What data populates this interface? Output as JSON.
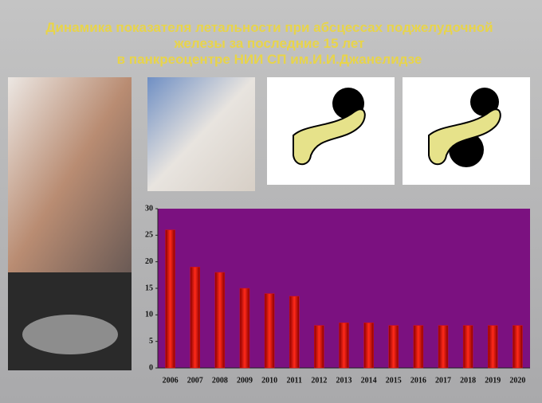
{
  "title_lines": [
    "Динамика показателя летальности при абсцессах поджелудочной",
    "железы за последние 15 лет",
    "в панкреоцентре НИИ СП им.И.И.Джанелидзе"
  ],
  "chart_data": {
    "type": "bar",
    "categories": [
      "2006",
      "2007",
      "2008",
      "2009",
      "2010",
      "2011",
      "2012",
      "2013",
      "2014",
      "2015",
      "2016",
      "2017",
      "2018",
      "2019",
      "2020"
    ],
    "values": [
      26,
      19,
      18,
      15,
      14,
      13.5,
      8,
      8.5,
      8.5,
      8,
      8,
      8,
      8,
      8,
      8
    ],
    "color": "#e01010",
    "ylim": [
      0,
      30
    ],
    "yticks": [
      0,
      5,
      10,
      15,
      20,
      25,
      30
    ],
    "grid": false
  }
}
